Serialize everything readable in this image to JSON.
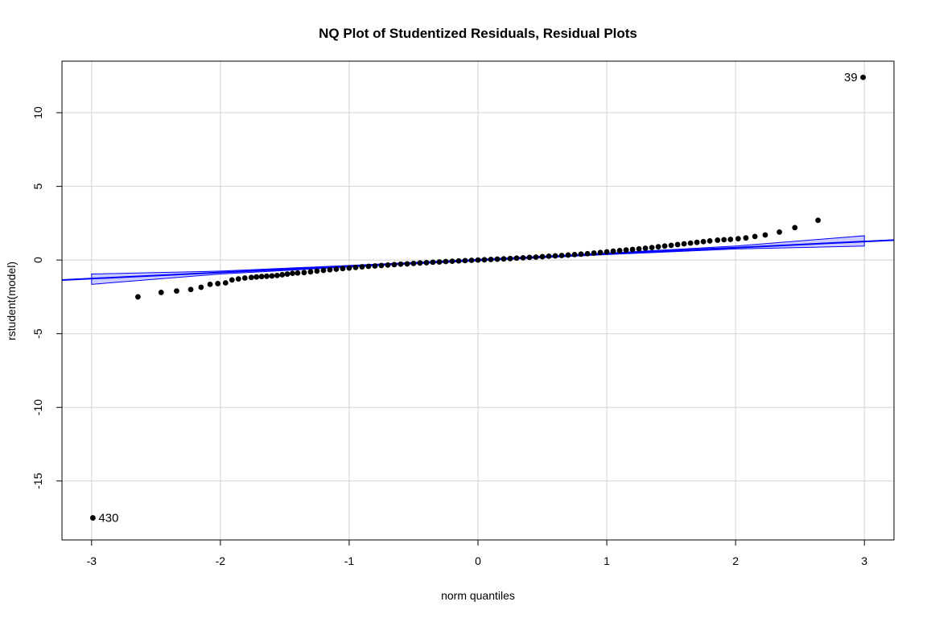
{
  "chart_data": {
    "type": "scatter",
    "title": "NQ Plot of Studentized Residuals, Residual Plots",
    "xlabel": "norm quantiles",
    "ylabel": "rstudent(model)",
    "xlim": [
      -3.23,
      3.23
    ],
    "ylim": [
      -19.0,
      13.5
    ],
    "xticks": [
      -3,
      -2,
      -1,
      0,
      1,
      2,
      3
    ],
    "yticks": [
      -15,
      -10,
      -5,
      0,
      5,
      10
    ],
    "grid": true,
    "reference_line": {
      "slope": 0.42,
      "intercept": 0.0,
      "color": "#0000ff"
    },
    "envelope": {
      "color": "#0000ff",
      "fill": "#ccccff",
      "points": [
        {
          "x": -3.0,
          "lower": -1.65,
          "upper": -0.95
        },
        {
          "x": -2.0,
          "lower": -0.95,
          "upper": -0.75
        },
        {
          "x": -1.0,
          "lower": -0.47,
          "upper": -0.37
        },
        {
          "x": 0.0,
          "lower": -0.05,
          "upper": 0.05
        },
        {
          "x": 1.0,
          "lower": 0.37,
          "upper": 0.47
        },
        {
          "x": 2.0,
          "lower": 0.75,
          "upper": 0.95
        },
        {
          "x": 3.0,
          "lower": 0.95,
          "upper": 1.65
        }
      ]
    },
    "series": [
      {
        "points": [
          [
            -2.99,
            -17.5
          ],
          [
            -2.64,
            -2.5
          ],
          [
            -2.46,
            -2.2
          ],
          [
            -2.34,
            -2.1
          ],
          [
            -2.23,
            -2.0
          ],
          [
            -2.15,
            -1.85
          ],
          [
            -2.08,
            -1.65
          ],
          [
            -2.02,
            -1.6
          ],
          [
            -1.96,
            -1.55
          ],
          [
            -1.91,
            -1.35
          ],
          [
            -1.86,
            -1.28
          ],
          [
            -1.81,
            -1.22
          ],
          [
            -1.76,
            -1.18
          ],
          [
            -1.72,
            -1.15
          ],
          [
            -1.68,
            -1.12
          ],
          [
            -1.64,
            -1.1
          ],
          [
            -1.6,
            -1.08
          ],
          [
            -1.56,
            -1.05
          ],
          [
            -1.52,
            -1.0
          ],
          [
            -1.48,
            -0.95
          ],
          [
            -1.44,
            -0.9
          ],
          [
            -1.4,
            -0.88
          ],
          [
            -1.35,
            -0.85
          ],
          [
            -1.3,
            -0.8
          ],
          [
            -1.25,
            -0.75
          ],
          [
            -1.2,
            -0.7
          ],
          [
            -1.15,
            -0.66
          ],
          [
            -1.1,
            -0.62
          ],
          [
            -1.05,
            -0.58
          ],
          [
            -1.0,
            -0.54
          ],
          [
            -0.95,
            -0.5
          ],
          [
            -0.9,
            -0.46
          ],
          [
            -0.85,
            -0.43
          ],
          [
            -0.8,
            -0.4
          ],
          [
            -0.75,
            -0.37
          ],
          [
            -0.7,
            -0.34
          ],
          [
            -0.65,
            -0.31
          ],
          [
            -0.6,
            -0.28
          ],
          [
            -0.55,
            -0.26
          ],
          [
            -0.5,
            -0.23
          ],
          [
            -0.45,
            -0.2
          ],
          [
            -0.4,
            -0.18
          ],
          [
            -0.35,
            -0.15
          ],
          [
            -0.3,
            -0.13
          ],
          [
            -0.25,
            -0.1
          ],
          [
            -0.2,
            -0.08
          ],
          [
            -0.15,
            -0.06
          ],
          [
            -0.1,
            -0.04
          ],
          [
            -0.05,
            -0.02
          ],
          [
            0.0,
            0.0
          ],
          [
            0.05,
            0.02
          ],
          [
            0.1,
            0.04
          ],
          [
            0.15,
            0.06
          ],
          [
            0.2,
            0.08
          ],
          [
            0.25,
            0.1
          ],
          [
            0.3,
            0.13
          ],
          [
            0.35,
            0.15
          ],
          [
            0.4,
            0.18
          ],
          [
            0.45,
            0.2
          ],
          [
            0.5,
            0.23
          ],
          [
            0.55,
            0.26
          ],
          [
            0.6,
            0.28
          ],
          [
            0.65,
            0.31
          ],
          [
            0.7,
            0.34
          ],
          [
            0.75,
            0.37
          ],
          [
            0.8,
            0.4
          ],
          [
            0.85,
            0.43
          ],
          [
            0.9,
            0.47
          ],
          [
            0.95,
            0.51
          ],
          [
            1.0,
            0.55
          ],
          [
            1.05,
            0.6
          ],
          [
            1.1,
            0.64
          ],
          [
            1.15,
            0.68
          ],
          [
            1.2,
            0.72
          ],
          [
            1.25,
            0.76
          ],
          [
            1.3,
            0.8
          ],
          [
            1.35,
            0.85
          ],
          [
            1.4,
            0.9
          ],
          [
            1.45,
            0.95
          ],
          [
            1.5,
            1.0
          ],
          [
            1.55,
            1.05
          ],
          [
            1.6,
            1.1
          ],
          [
            1.65,
            1.15
          ],
          [
            1.7,
            1.2
          ],
          [
            1.75,
            1.25
          ],
          [
            1.8,
            1.3
          ],
          [
            1.86,
            1.35
          ],
          [
            1.91,
            1.38
          ],
          [
            1.96,
            1.4
          ],
          [
            2.02,
            1.45
          ],
          [
            2.08,
            1.5
          ],
          [
            2.15,
            1.6
          ],
          [
            2.23,
            1.7
          ],
          [
            2.34,
            1.9
          ],
          [
            2.46,
            2.2
          ],
          [
            2.64,
            2.7
          ],
          [
            2.99,
            12.4
          ]
        ]
      }
    ],
    "annotations": [
      {
        "text": "39",
        "x": 2.99,
        "y": 12.4,
        "side": "left"
      },
      {
        "text": "430",
        "x": -2.99,
        "y": -17.5,
        "side": "right"
      }
    ]
  }
}
